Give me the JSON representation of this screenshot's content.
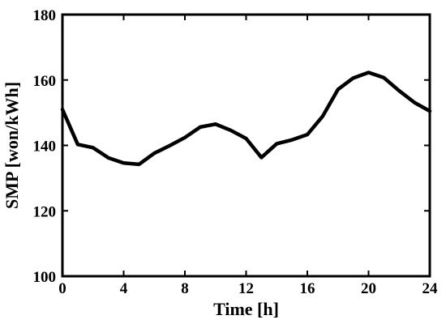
{
  "chart_data": {
    "type": "line",
    "xlabel": "Time [h]",
    "ylabel": "SMP [won/kWh]",
    "xlim": [
      0,
      24
    ],
    "ylim": [
      100,
      180
    ],
    "xticks": [
      0,
      4,
      8,
      12,
      16,
      20,
      24
    ],
    "yticks": [
      100,
      120,
      140,
      160,
      180
    ],
    "grid": false,
    "series": [
      {
        "x": [
          0,
          1,
          2,
          3,
          4,
          5,
          6,
          7,
          8,
          9,
          10,
          11,
          12,
          13,
          14,
          15,
          16,
          17,
          18,
          19,
          20,
          21,
          22,
          23,
          24
        ],
        "y": [
          151,
          140.3,
          139.3,
          136.2,
          134.6,
          134.2,
          137.6,
          139.9,
          142.4,
          145.6,
          146.5,
          144.6,
          142.1,
          136.3,
          140.5,
          141.7,
          143.3,
          148.9,
          157.1,
          160.6,
          162.3,
          160.7,
          156.7,
          153.1,
          150.5
        ],
        "color": "#000000"
      }
    ]
  }
}
